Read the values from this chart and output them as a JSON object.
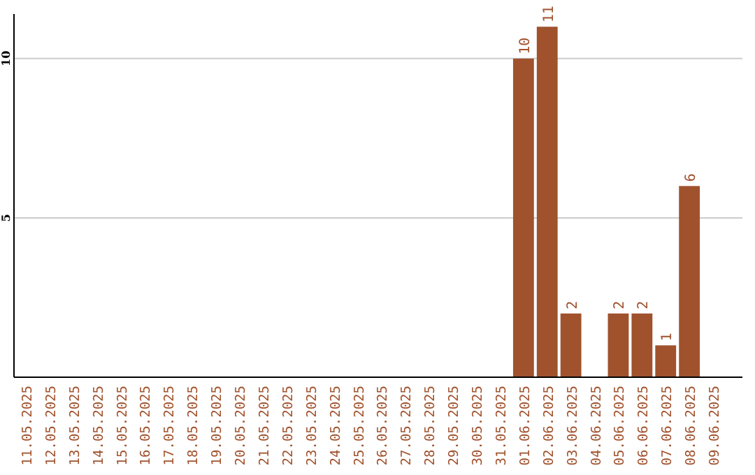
{
  "chart_data": {
    "type": "bar",
    "categories": [
      "11.05.2025",
      "12.05.2025",
      "13.05.2025",
      "14.05.2025",
      "15.05.2025",
      "16.05.2025",
      "17.05.2025",
      "18.05.2025",
      "19.05.2025",
      "20.05.2025",
      "21.05.2025",
      "22.05.2025",
      "23.05.2025",
      "24.05.2025",
      "25.05.2025",
      "26.05.2025",
      "27.05.2025",
      "28.05.2025",
      "29.05.2025",
      "30.05.2025",
      "31.05.2025",
      "01.06.2025",
      "02.06.2025",
      "03.06.2025",
      "04.06.2025",
      "05.06.2025",
      "06.06.2025",
      "07.06.2025",
      "08.06.2025",
      "09.06.2025"
    ],
    "values": [
      0,
      0,
      0,
      0,
      0,
      0,
      0,
      0,
      0,
      0,
      0,
      0,
      0,
      0,
      0,
      0,
      0,
      0,
      0,
      0,
      0,
      10,
      11,
      2,
      0,
      2,
      2,
      1,
      6,
      0
    ],
    "value_labels": [
      null,
      null,
      null,
      null,
      null,
      null,
      null,
      null,
      null,
      null,
      null,
      null,
      null,
      null,
      null,
      null,
      null,
      null,
      null,
      null,
      null,
      "10",
      "11",
      "2",
      null,
      "2",
      "2",
      "1",
      "6",
      null
    ],
    "color": "#a0522d",
    "ylim": [
      0,
      11.4
    ],
    "yticks": [
      5,
      10
    ],
    "grid": "y"
  }
}
